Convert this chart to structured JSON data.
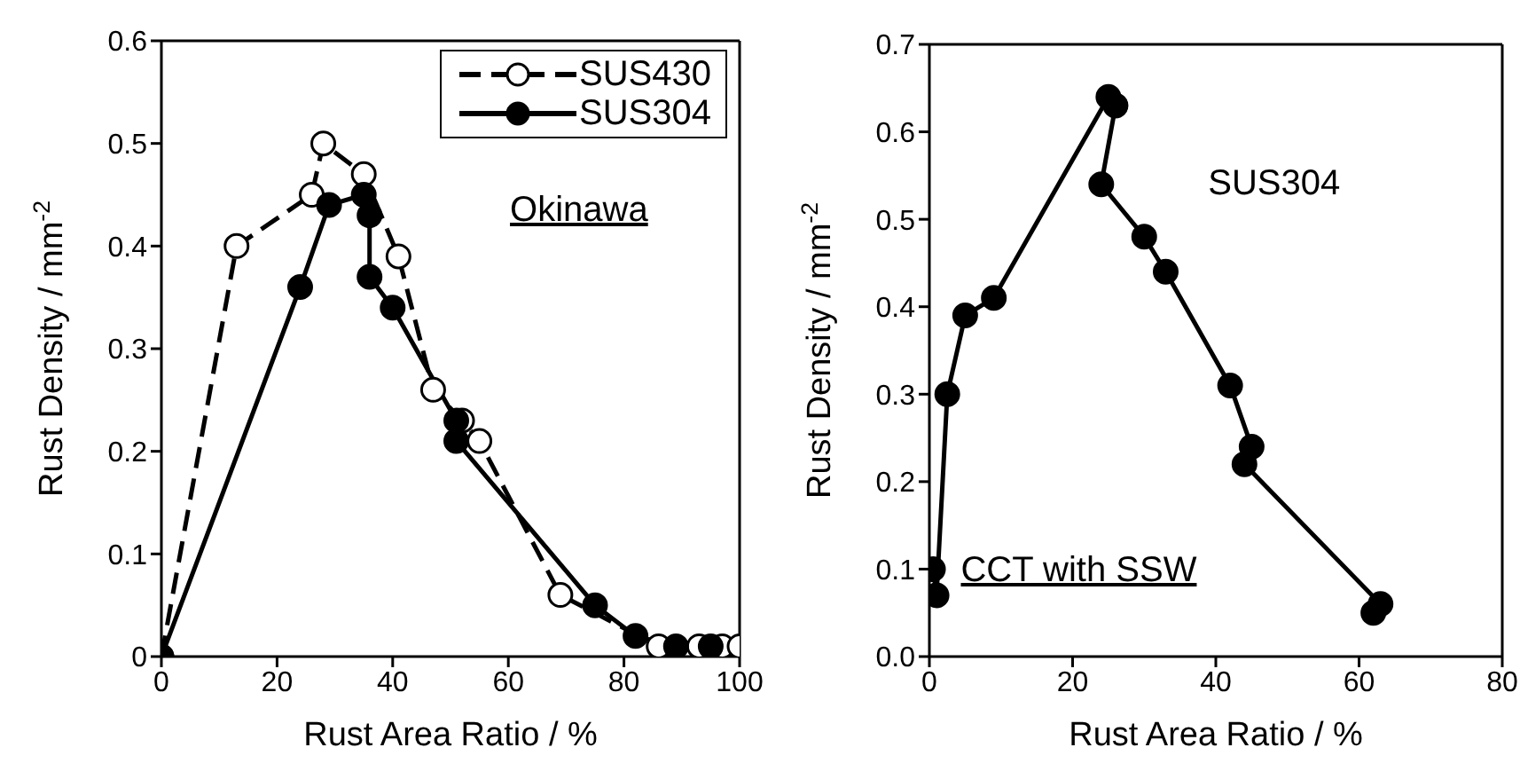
{
  "chart_data": [
    {
      "type": "line",
      "xlabel": "Rust Area Ratio /  %",
      "ylabel": "Rust Density / mm$^{-2}$",
      "xlim": [
        0,
        100
      ],
      "xticks": [
        0,
        20,
        40,
        60,
        80,
        100
      ],
      "ylim": [
        0,
        0.6
      ],
      "yticks": [
        0,
        0.1,
        0.2,
        0.3,
        0.4,
        0.5,
        0.6
      ],
      "legend": "top right",
      "marker": "circle",
      "annotations": [
        "Okinawa"
      ],
      "series": [
        {
          "name": "SUS430",
          "color": "#000000",
          "line_style": "dashed",
          "x": [
            0,
            13,
            26,
            28,
            35,
            41,
            47,
            52,
            55,
            69,
            86,
            93,
            97,
            100
          ],
          "values": [
            0,
            0.4,
            0.45,
            0.5,
            0.47,
            0.39,
            0.26,
            0.23,
            0.21,
            0.06,
            0.01,
            0.01,
            0.01,
            0.01
          ]
        },
        {
          "name": "SUS304",
          "color": "#000000",
          "line_style": "solid",
          "x": [
            0,
            24,
            29,
            35,
            36,
            36,
            40,
            51,
            51,
            75,
            82,
            89,
            95
          ],
          "values": [
            0,
            0.36,
            0.44,
            0.45,
            0.43,
            0.37,
            0.34,
            0.23,
            0.21,
            0.05,
            0.02,
            0.01,
            0.01
          ]
        }
      ]
    },
    {
      "type": "line",
      "xlabel": "Rust Area Ratio /  %",
      "ylabel": "Rust Density / mm$^{-2}$",
      "xlim": [
        0,
        80
      ],
      "xticks": [
        0,
        20,
        40,
        60,
        80
      ],
      "ylim": [
        0,
        0.7
      ],
      "yticks": [
        {
          "value": 0,
          "label": "0.0"
        },
        0.1,
        0.2,
        0.3,
        0.4,
        0.5,
        0.6,
        0.7
      ],
      "legend": false,
      "marker": "circle",
      "annotations": [
        "SUS304",
        "CCT with SSW"
      ],
      "series": [
        {
          "color": "#000000",
          "line_style": "solid",
          "x": [
            0.5,
            1,
            2.5,
            5,
            9,
            25,
            26,
            24,
            30,
            33,
            42,
            45,
            44,
            63,
            62
          ],
          "values": [
            0.1,
            0.07,
            0.3,
            0.39,
            0.41,
            0.64,
            0.63,
            0.54,
            0.48,
            0.44,
            0.31,
            0.24,
            0.22,
            0.06,
            0.05
          ]
        }
      ]
    }
  ]
}
